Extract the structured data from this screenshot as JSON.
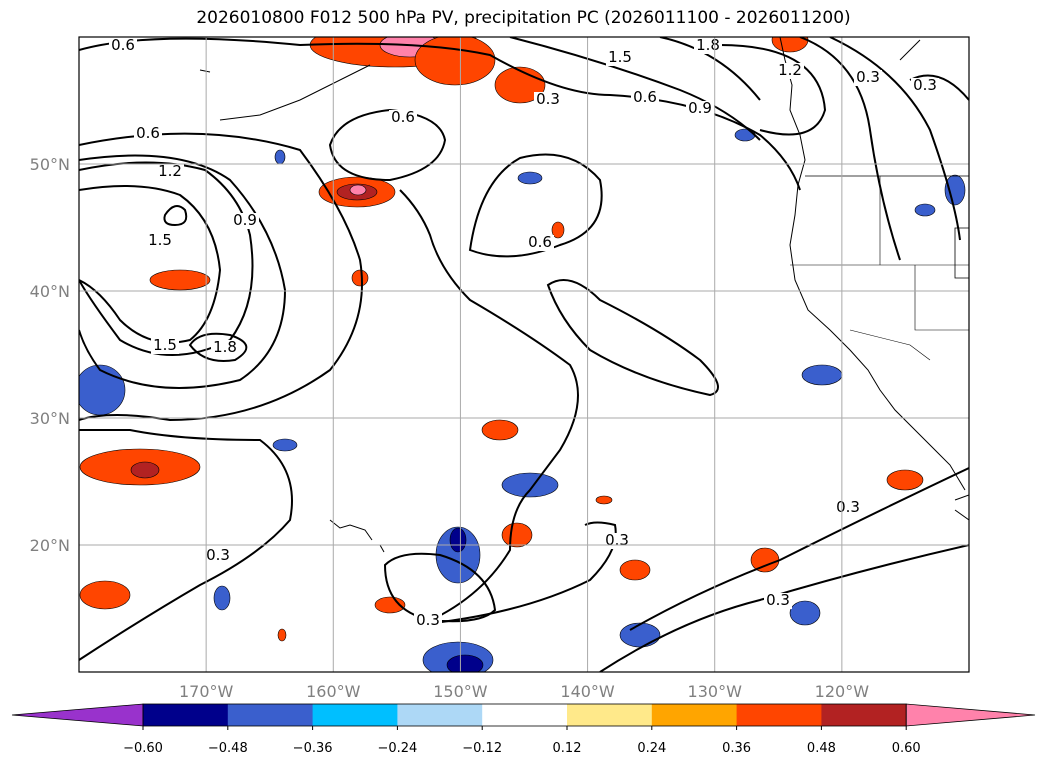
{
  "chart_data": {
    "type": "heatmap",
    "title": "2026010800 F012 500 hPa PV, precipitation PC (2026011100 - 2026011200)",
    "map": {
      "lon_range": [
        -180,
        -110
      ],
      "lat_range": [
        10,
        60
      ],
      "grid": true,
      "lon_ticks": [
        -170,
        -160,
        -150,
        -140,
        -130,
        -120
      ],
      "lon_tick_labels": [
        "170°W",
        "160°W",
        "150°W",
        "140°W",
        "130°W",
        "120°W"
      ],
      "lat_ticks": [
        20,
        30,
        40,
        50
      ],
      "lat_tick_labels": [
        "20°N",
        "30°N",
        "40°N",
        "50°N"
      ]
    },
    "colorbar": {
      "ticks": [
        -0.6,
        -0.48,
        -0.36,
        -0.24,
        -0.12,
        0.12,
        0.24,
        0.36,
        0.48,
        0.6
      ],
      "tick_labels": [
        "−0.60",
        "−0.48",
        "−0.36",
        "−0.24",
        "−0.12",
        "0.12",
        "0.24",
        "0.36",
        "0.48",
        "0.60"
      ],
      "colors": [
        "#9932cc",
        "#00008b",
        "#3a5fcd",
        "#00bfff",
        "#add8f6",
        "#ffffff",
        "#ffe98a",
        "#ffa500",
        "#ff4500",
        "#b22222",
        "#ff82ab"
      ],
      "extend": "both"
    },
    "contour_labels": [
      "0.3",
      "0.6",
      "0.9",
      "1.2",
      "1.5",
      "1.8"
    ]
  }
}
